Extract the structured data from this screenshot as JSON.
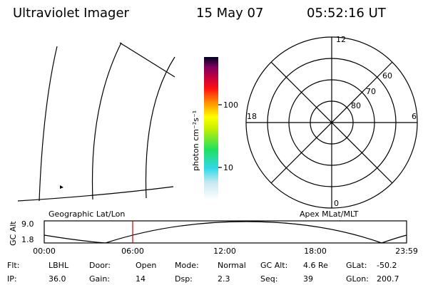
{
  "header": {
    "title": "Ultraviolet Imager",
    "date": "15 May 07",
    "time": "05:52:16 UT"
  },
  "colorbar": {
    "label": "photon cm⁻²s⁻¹",
    "ticks": [
      "100",
      "10"
    ]
  },
  "polar": {
    "mlt": [
      "12",
      "6",
      "18",
      "0"
    ],
    "mlat": [
      "60",
      "70",
      "80"
    ]
  },
  "panel_labels": [
    "Geographic Lat/Lon",
    "Apex MLat/MLT"
  ],
  "timeline": {
    "axis_label": "GC Alt",
    "ylabels": [
      "9.0",
      "1.8"
    ],
    "xlabels": [
      "00:00",
      "06:00",
      "12:00",
      "18:00",
      "23:59"
    ]
  },
  "info": [
    [
      {
        "label": "Flt:",
        "value": "LBHL"
      },
      {
        "label": "Door:",
        "value": "Open"
      },
      {
        "label": "Mode:",
        "value": "Normal"
      },
      {
        "label": "GC Alt:",
        "value": "4.6 Re"
      },
      {
        "label": "GLat:",
        "value": "-50.2"
      }
    ],
    [
      {
        "label": "IP:",
        "value": "36.0"
      },
      {
        "label": "Gain:",
        "value": "14"
      },
      {
        "label": "Dsp:",
        "value": "2.3"
      },
      {
        "label": "Seq:",
        "value": "39"
      },
      {
        "label": "GLon:",
        "value": "200.7"
      }
    ]
  ]
}
